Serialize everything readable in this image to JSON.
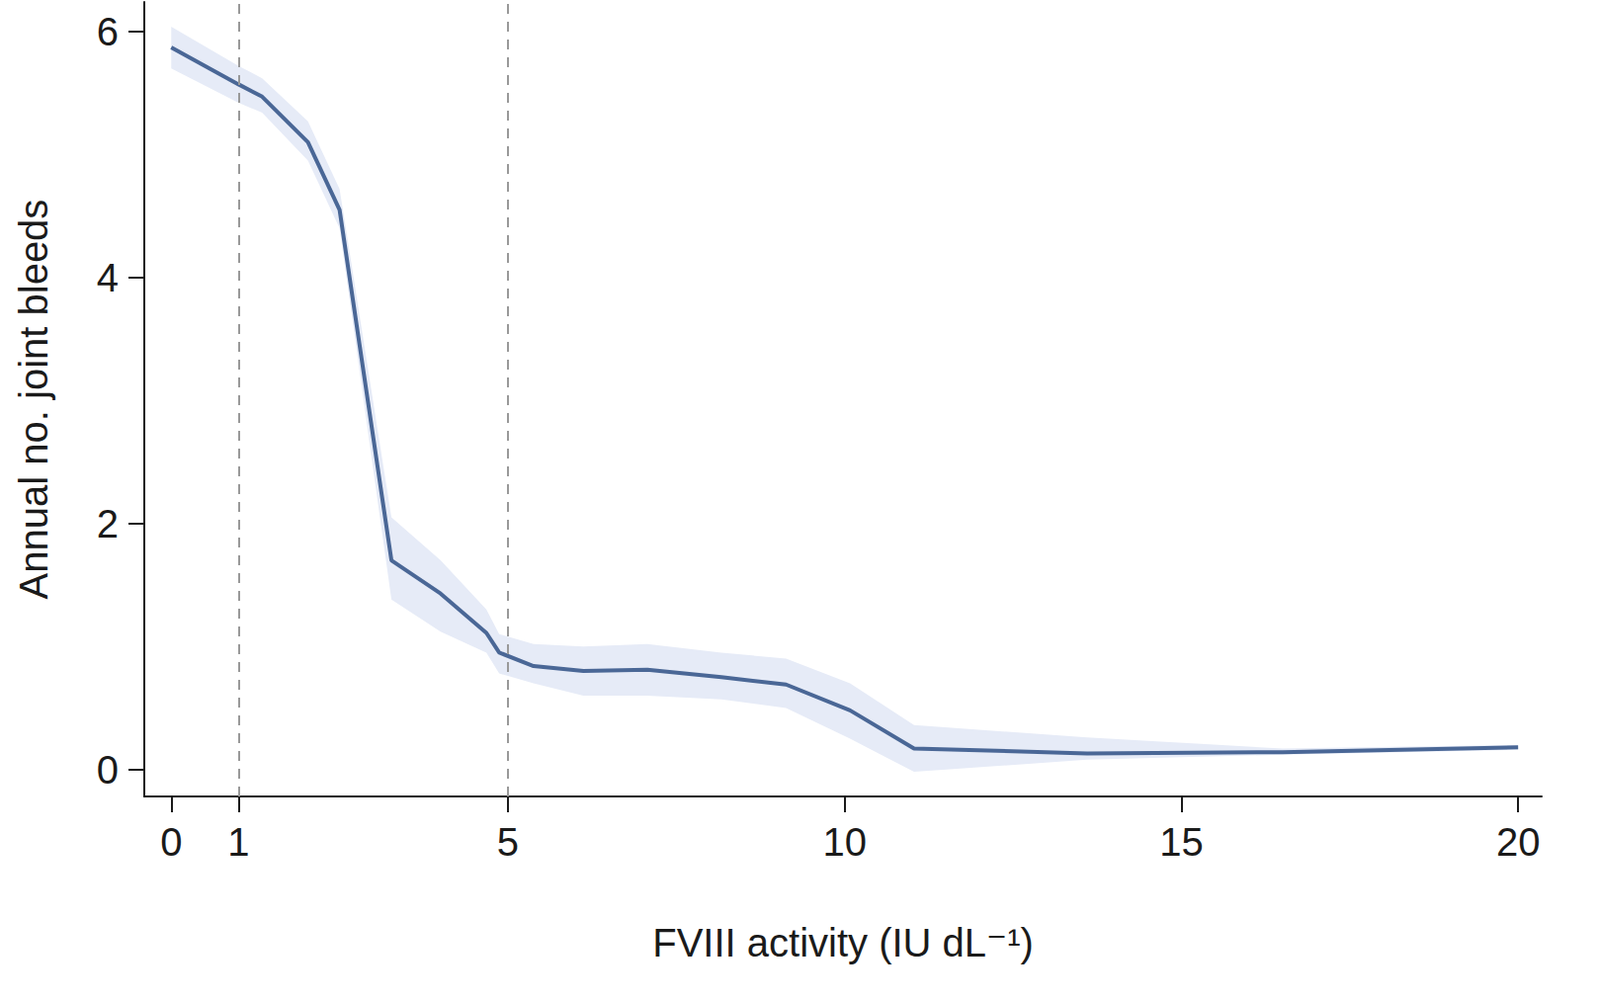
{
  "chart_data": {
    "type": "line",
    "x_label": "FVIII activity (IU dL⁻¹)",
    "y_label": "Annual no. joint bleeds",
    "x": [
      0,
      1,
      1.35,
      2.03,
      2.5,
      3.27,
      4.0,
      4.68,
      4.87,
      5.38,
      6.12,
      7.07,
      8.17,
      9.13,
      10.08,
      11.03,
      13.6,
      16.5,
      20
    ],
    "series": [
      {
        "color": "#4a6796",
        "values": [
          5.87,
          5.57,
          5.47,
          5.1,
          4.55,
          1.7,
          1.43,
          1.11,
          0.95,
          0.84,
          0.8,
          0.81,
          0.75,
          0.69,
          0.48,
          0.17,
          0.13,
          0.14,
          0.18
        ],
        "lower": [
          5.7,
          5.42,
          5.34,
          4.95,
          4.4,
          1.38,
          1.12,
          0.95,
          0.78,
          0.7,
          0.6,
          0.6,
          0.57,
          0.5,
          0.25,
          -0.02,
          0.08,
          0.12,
          0.16
        ],
        "upper": [
          6.04,
          5.72,
          5.62,
          5.27,
          4.72,
          2.05,
          1.7,
          1.3,
          1.1,
          1.02,
          1.0,
          1.02,
          0.95,
          0.9,
          0.7,
          0.36,
          0.26,
          0.17,
          0.2
        ],
        "band_color": "#e6ebf7"
      }
    ],
    "reference_lines_x": [
      1,
      5
    ],
    "xlim": [
      -0.4,
      20.35
    ],
    "xticks": [
      0,
      1,
      5,
      10,
      15,
      20
    ],
    "ylim": [
      -0.22,
      6.24
    ],
    "yticks": [
      0,
      2,
      4,
      6
    ],
    "grid": false
  }
}
